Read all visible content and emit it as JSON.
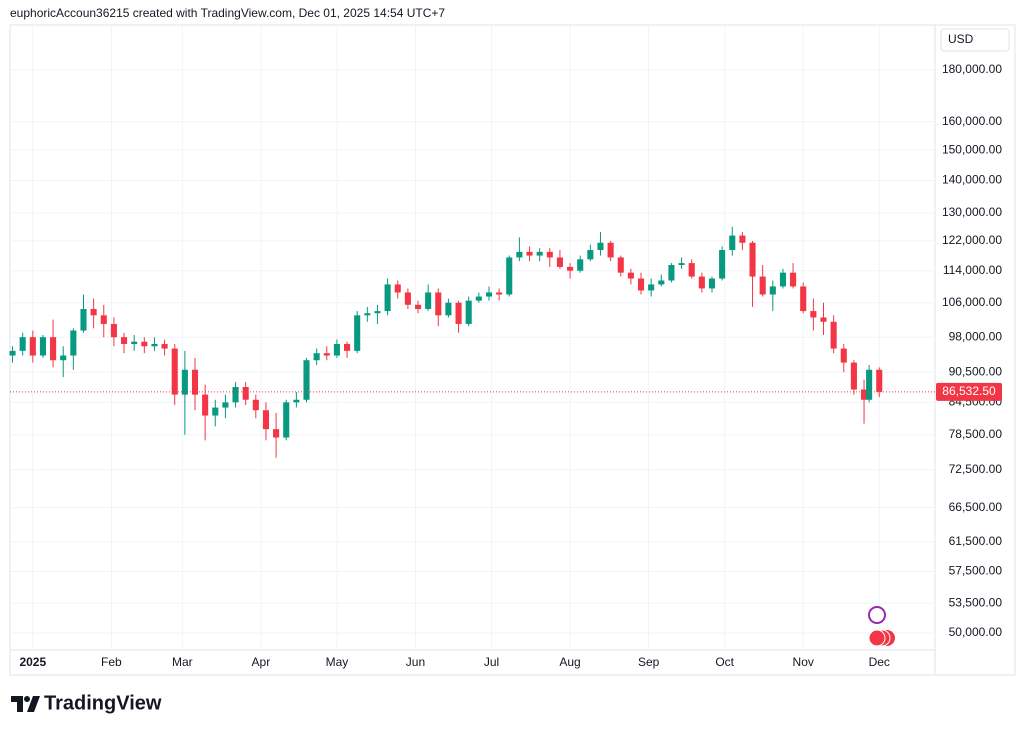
{
  "header": {
    "text": "euphoricAccoun36215 created with TradingView.com, Dec 01, 2025 14:54 UTC+7"
  },
  "footer": {
    "logo": "TradingView"
  },
  "chart_data": {
    "type": "candlestick",
    "currency": "USD",
    "log_scale": true,
    "grid": true,
    "up_color": "#089981",
    "down_color": "#f23645",
    "xlim": [
      -9,
      356
    ],
    "xticks": [
      {
        "value": 0,
        "label": "2025"
      },
      {
        "value": 31,
        "label": "Feb"
      },
      {
        "value": 59,
        "label": "Mar"
      },
      {
        "value": 90,
        "label": "Apr"
      },
      {
        "value": 120,
        "label": "May"
      },
      {
        "value": 151,
        "label": "Jun"
      },
      {
        "value": 181,
        "label": "Jul"
      },
      {
        "value": 212,
        "label": "Aug"
      },
      {
        "value": 243,
        "label": "Sep"
      },
      {
        "value": 273,
        "label": "Oct"
      },
      {
        "value": 304,
        "label": "Nov"
      },
      {
        "value": 334,
        "label": "Dec"
      }
    ],
    "ylim": [
      48100,
      199400
    ],
    "yticks": [
      {
        "value": 50000,
        "label": "50,000.00"
      },
      {
        "value": 53500,
        "label": "53,500.00"
      },
      {
        "value": 57500,
        "label": "57,500.00"
      },
      {
        "value": 61500,
        "label": "61,500.00"
      },
      {
        "value": 66500,
        "label": "66,500.00"
      },
      {
        "value": 72500,
        "label": "72,500.00"
      },
      {
        "value": 78500,
        "label": "78,500.00"
      },
      {
        "value": 84500,
        "label": "84,500.00"
      },
      {
        "value": 90500,
        "label": "90,500.00"
      },
      {
        "value": 98000,
        "label": "98,000.00"
      },
      {
        "value": 106000,
        "label": "106,000.00"
      },
      {
        "value": 114000,
        "label": "114,000.00"
      },
      {
        "value": 122000,
        "label": "122,000.00"
      },
      {
        "value": 130000,
        "label": "130,000.00"
      },
      {
        "value": 140000,
        "label": "140,000.00"
      },
      {
        "value": 150000,
        "label": "150,000.00"
      },
      {
        "value": 160000,
        "label": "160,000.00"
      },
      {
        "value": 180000,
        "label": "180,000.00"
      }
    ],
    "last_price": {
      "value": 86532.5,
      "label": "86,532.50"
    },
    "x": [
      -8,
      -4,
      0,
      4,
      8,
      12,
      16,
      20,
      24,
      28,
      32,
      36,
      40,
      44,
      48,
      52,
      56,
      60,
      64,
      68,
      72,
      76,
      80,
      84,
      88,
      92,
      96,
      100,
      104,
      108,
      112,
      116,
      120,
      124,
      128,
      132,
      136,
      140,
      144,
      148,
      152,
      156,
      160,
      164,
      168,
      172,
      176,
      180,
      184,
      188,
      192,
      196,
      200,
      204,
      208,
      212,
      216,
      220,
      224,
      228,
      232,
      236,
      240,
      244,
      248,
      252,
      256,
      260,
      264,
      268,
      272,
      276,
      280,
      284,
      288,
      292,
      296,
      300,
      304,
      308,
      312,
      316,
      320,
      324,
      328,
      330,
      334
    ],
    "open": [
      94000,
      95000,
      98000,
      94000,
      98000,
      93000,
      94000,
      99500,
      104500,
      103000,
      101000,
      98000,
      96500,
      97000,
      96000,
      96500,
      95500,
      86000,
      91000,
      86000,
      82000,
      83500,
      84500,
      87500,
      85000,
      83000,
      79500,
      78000,
      84500,
      85000,
      93000,
      94500,
      94000,
      96500,
      95000,
      103000,
      103500,
      104000,
      110500,
      108500,
      105500,
      104500,
      108500,
      103000,
      106000,
      101000,
      106500,
      107500,
      108500,
      108000,
      117500,
      119000,
      118000,
      119000,
      117500,
      115000,
      114000,
      117000,
      119500,
      121500,
      117500,
      113500,
      112000,
      109000,
      110500,
      111500,
      115500,
      116000,
      112500,
      109500,
      112000,
      119500,
      123500,
      121500,
      112500,
      108000,
      110000,
      113500,
      110000,
      104000,
      102500,
      101500,
      95500,
      92500,
      87000,
      85000,
      91000
    ],
    "high": [
      96000,
      99000,
      99500,
      98500,
      102000,
      96000,
      100000,
      108000,
      107000,
      105500,
      102500,
      99000,
      98500,
      98000,
      98000,
      97500,
      96500,
      95000,
      93500,
      88000,
      85000,
      86000,
      88500,
      88500,
      86000,
      84500,
      82500,
      85000,
      86500,
      93500,
      95500,
      96000,
      97500,
      97000,
      104000,
      105000,
      105500,
      112000,
      111500,
      109500,
      106500,
      110500,
      109500,
      107000,
      106500,
      107500,
      108500,
      110000,
      109500,
      118000,
      123000,
      120500,
      120000,
      120000,
      119500,
      116000,
      118000,
      121000,
      124500,
      122000,
      118000,
      114500,
      113500,
      112000,
      113000,
      116000,
      117500,
      117000,
      113500,
      112500,
      120500,
      126000,
      124500,
      122000,
      115500,
      111500,
      114500,
      116000,
      111000,
      107000,
      106000,
      103000,
      96500,
      93000,
      89000,
      92000,
      91500
    ],
    "low": [
      92500,
      94000,
      92500,
      93500,
      91500,
      89500,
      91000,
      99000,
      100000,
      98000,
      96000,
      94500,
      95000,
      94500,
      95000,
      94000,
      84000,
      78500,
      83000,
      77500,
      80000,
      81500,
      83500,
      84000,
      81500,
      77500,
      74500,
      77500,
      83500,
      84500,
      92000,
      93000,
      93500,
      93500,
      94500,
      101500,
      101000,
      103000,
      107000,
      104500,
      103500,
      104000,
      100500,
      102500,
      99000,
      100500,
      106000,
      106500,
      106500,
      107500,
      116500,
      116500,
      116500,
      115000,
      114500,
      112000,
      113500,
      116500,
      118000,
      116500,
      112500,
      110500,
      108000,
      107500,
      110000,
      111000,
      114500,
      112000,
      108500,
      108500,
      111500,
      118000,
      119500,
      105000,
      107500,
      104000,
      109500,
      109500,
      103500,
      99500,
      98500,
      94500,
      90500,
      86000,
      80500,
      84500,
      85500
    ],
    "close": [
      95000,
      98000,
      94000,
      98000,
      93000,
      94000,
      99500,
      104500,
      103000,
      101000,
      98000,
      96500,
      97000,
      96000,
      96500,
      95500,
      86000,
      91000,
      86000,
      82000,
      83500,
      84500,
      87500,
      85000,
      83000,
      79500,
      78000,
      84500,
      85000,
      93000,
      94500,
      94000,
      96500,
      95000,
      103000,
      103500,
      104000,
      110500,
      108500,
      105500,
      104500,
      108500,
      103000,
      106000,
      101000,
      106500,
      107500,
      108500,
      108000,
      117500,
      119000,
      118000,
      119000,
      117500,
      115000,
      114000,
      117000,
      119500,
      121500,
      117500,
      113500,
      112000,
      109000,
      110500,
      111500,
      115500,
      116000,
      112500,
      109500,
      112000,
      119500,
      123500,
      121500,
      112500,
      108000,
      110000,
      113500,
      110000,
      104000,
      102500,
      101500,
      95500,
      92500,
      87000,
      85000,
      91000,
      86532.5
    ]
  }
}
